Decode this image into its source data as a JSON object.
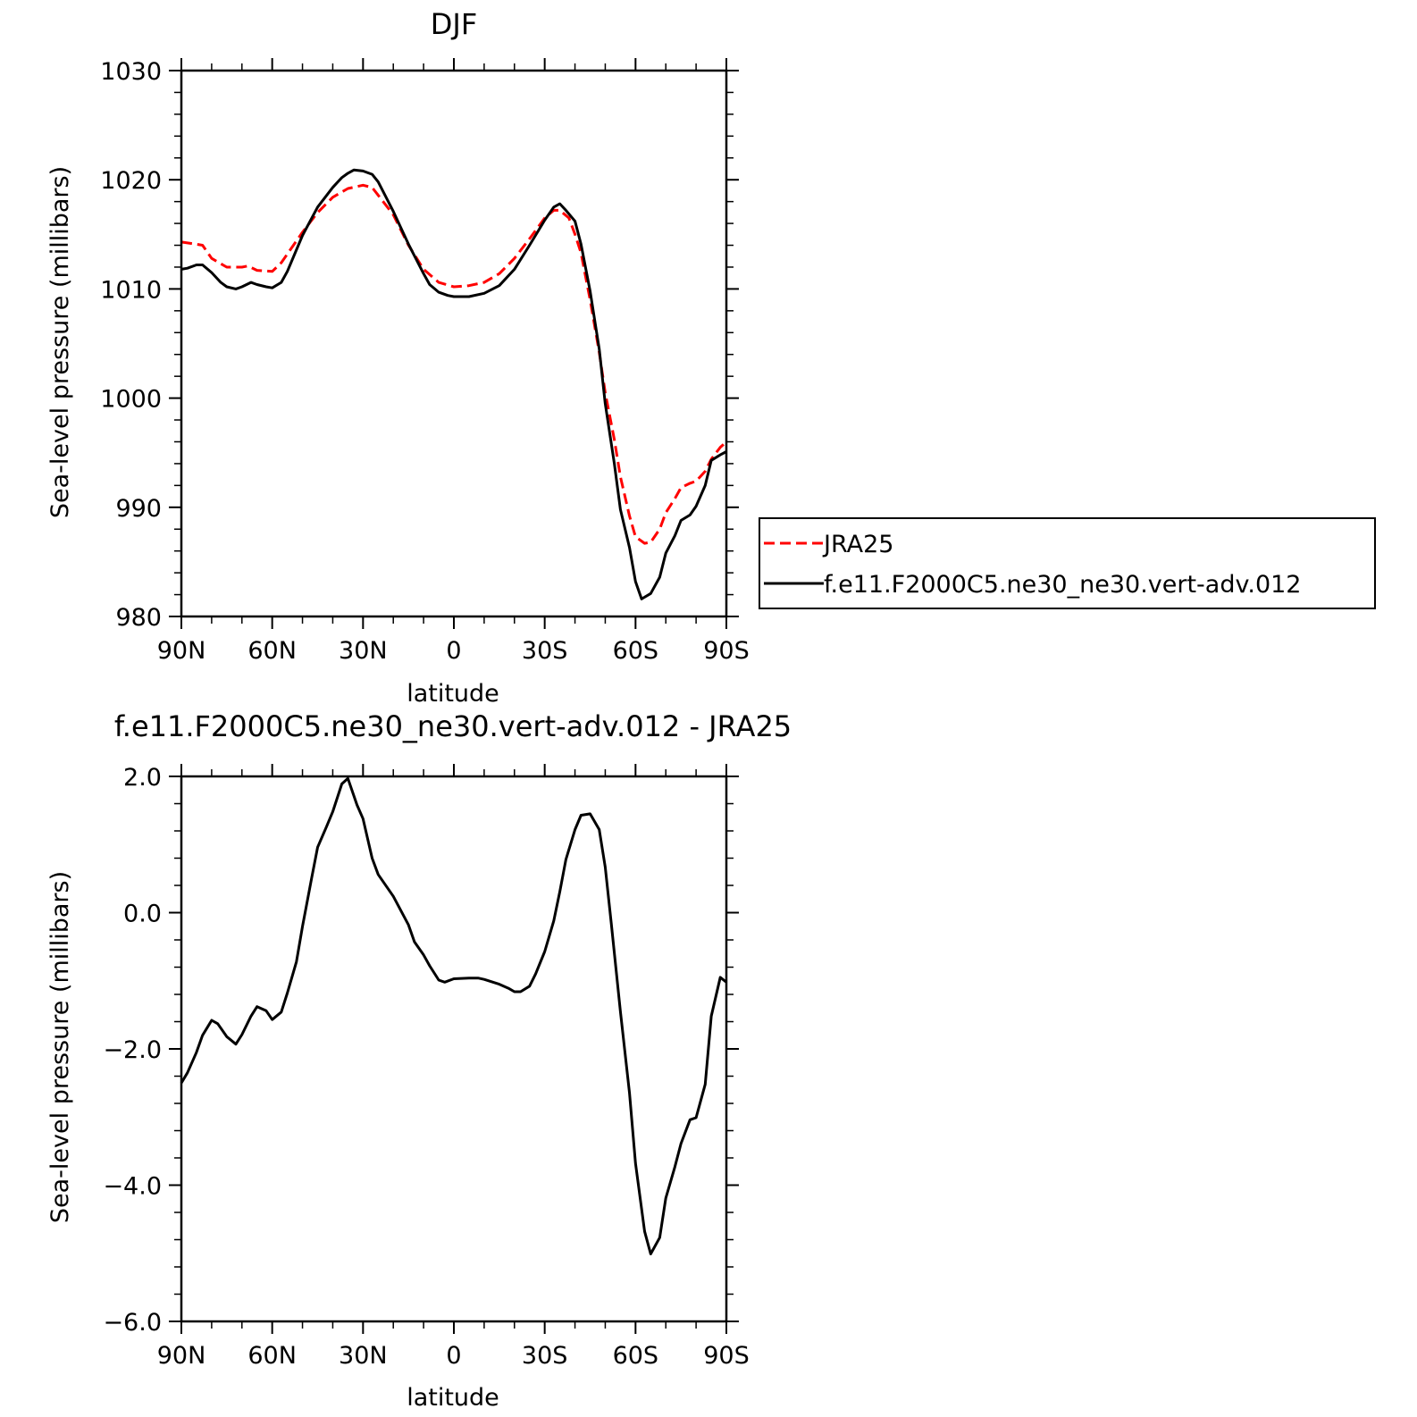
{
  "chart_data": [
    {
      "type": "line",
      "title": "DJF",
      "xlabel": "latitude",
      "ylabel": "Sea-level pressure (millibars)",
      "xlim": [
        90,
        -90
      ],
      "ylim": [
        980,
        1030
      ],
      "x_ticks": [
        {
          "value": 90,
          "label": "90N"
        },
        {
          "value": 60,
          "label": "60N"
        },
        {
          "value": 30,
          "label": "30N"
        },
        {
          "value": 0,
          "label": "0"
        },
        {
          "value": -30,
          "label": "30S"
        },
        {
          "value": -60,
          "label": "60S"
        },
        {
          "value": -90,
          "label": "90S"
        }
      ],
      "y_ticks": [
        {
          "value": 980,
          "label": "980"
        },
        {
          "value": 990,
          "label": "990"
        },
        {
          "value": 1000,
          "label": "1000"
        },
        {
          "value": 1010,
          "label": "1010"
        },
        {
          "value": 1020,
          "label": "1020"
        },
        {
          "value": 1030,
          "label": "1030"
        }
      ],
      "legend": {
        "position": "right"
      },
      "series": [
        {
          "name": "JRA25",
          "color": "#ff0000",
          "dash": "dashed",
          "x": [
            90,
            85,
            83,
            80,
            75,
            70,
            68,
            65,
            60,
            57,
            50,
            45,
            40,
            35,
            30,
            27,
            20,
            15,
            10,
            5,
            0,
            -5,
            -10,
            -15,
            -20,
            -25,
            -30,
            -33,
            -35,
            -38,
            -40,
            -42,
            -45,
            -48,
            -50,
            -53,
            -55,
            -58,
            -60,
            -63,
            -65,
            -68,
            -70,
            -73,
            -75,
            -78,
            -80,
            -83,
            -85,
            -88,
            -90
          ],
          "y": [
            1014.3,
            1014.1,
            1014.0,
            1012.8,
            1012.0,
            1012.0,
            1012.1,
            1011.7,
            1011.6,
            1012.4,
            1015.2,
            1017.0,
            1018.4,
            1019.2,
            1019.5,
            1019.3,
            1016.8,
            1014.0,
            1011.8,
            1010.6,
            1010.2,
            1010.3,
            1010.6,
            1011.4,
            1012.8,
            1014.6,
            1016.5,
            1017.2,
            1017.2,
            1016.5,
            1015.0,
            1013.3,
            1009.0,
            1004.2,
            1000.5,
            996.2,
            992.8,
            989.2,
            987.3,
            986.7,
            986.8,
            988.0,
            989.5,
            990.8,
            991.8,
            992.2,
            992.4,
            993.3,
            994.4,
            995.5,
            996.0
          ]
        },
        {
          "name": "f.e11.F2000C5.ne30_ne30.vert-adv.012",
          "color": "#000000",
          "dash": "solid",
          "x": [
            90,
            88,
            85,
            83,
            80,
            77,
            75,
            72,
            70,
            67,
            65,
            62,
            60,
            57,
            55,
            50,
            45,
            40,
            37,
            35,
            33,
            30,
            27,
            25,
            20,
            15,
            10,
            8,
            5,
            2,
            0,
            -5,
            -10,
            -15,
            -20,
            -25,
            -30,
            -33,
            -35,
            -37,
            -40,
            -42,
            -45,
            -48,
            -50,
            -53,
            -55,
            -58,
            -60,
            -62,
            -65,
            -68,
            -70,
            -73,
            -75,
            -78,
            -80,
            -83,
            -85,
            -88,
            -90
          ],
          "y": [
            1011.8,
            1011.9,
            1012.2,
            1012.2,
            1011.5,
            1010.6,
            1010.2,
            1010.0,
            1010.2,
            1010.6,
            1010.4,
            1010.2,
            1010.1,
            1010.6,
            1011.6,
            1014.9,
            1017.5,
            1019.3,
            1020.2,
            1020.6,
            1020.9,
            1020.8,
            1020.5,
            1019.8,
            1017.1,
            1014.1,
            1011.4,
            1010.4,
            1009.7,
            1009.4,
            1009.3,
            1009.3,
            1009.6,
            1010.3,
            1011.8,
            1014.0,
            1016.3,
            1017.5,
            1017.8,
            1017.2,
            1016.2,
            1014.1,
            1009.8,
            1004.5,
            999.5,
            994.0,
            989.8,
            986.3,
            983.2,
            981.6,
            982.1,
            983.6,
            985.8,
            987.4,
            988.8,
            989.3,
            990.1,
            992.0,
            994.3,
            994.8,
            995.1
          ]
        }
      ]
    },
    {
      "type": "line",
      "title": "f.e11.F2000C5.ne30_ne30.vert-adv.012 - JRA25",
      "xlabel": "latitude",
      "ylabel": "Sea-level pressure (millibars)",
      "xlim": [
        90,
        -90
      ],
      "ylim": [
        -6.0,
        2.0
      ],
      "x_ticks": [
        {
          "value": 90,
          "label": "90N"
        },
        {
          "value": 60,
          "label": "60N"
        },
        {
          "value": 30,
          "label": "30N"
        },
        {
          "value": 0,
          "label": "0"
        },
        {
          "value": -30,
          "label": "30S"
        },
        {
          "value": -60,
          "label": "60S"
        },
        {
          "value": -90,
          "label": "90S"
        }
      ],
      "y_ticks": [
        {
          "value": -6.0,
          "label": "−6.0"
        },
        {
          "value": -4.0,
          "label": "−4.0"
        },
        {
          "value": -2.0,
          "label": "−2.0"
        },
        {
          "value": 0.0,
          "label": "0.0"
        },
        {
          "value": 2.0,
          "label": "2.0"
        }
      ],
      "series": [
        {
          "color": "#000000",
          "dash": "solid",
          "x": [
            90,
            88,
            85,
            83,
            80,
            78,
            75,
            72,
            70,
            67,
            65,
            62,
            60,
            57,
            55,
            52,
            50,
            47,
            45,
            42,
            40,
            37,
            35,
            32,
            30,
            27,
            25,
            20,
            15,
            13,
            10,
            8,
            5,
            3,
            0,
            -5,
            -8,
            -10,
            -15,
            -18,
            -20,
            -22,
            -25,
            -27,
            -30,
            -33,
            -35,
            -37,
            -40,
            -42,
            -45,
            -48,
            -50,
            -52,
            -55,
            -58,
            -60,
            -63,
            -65,
            -68,
            -70,
            -73,
            -75,
            -78,
            -80,
            -83,
            -85,
            -88,
            -90
          ],
          "y": [
            -2.5,
            -2.35,
            -2.05,
            -1.8,
            -1.58,
            -1.63,
            -1.82,
            -1.93,
            -1.79,
            -1.52,
            -1.38,
            -1.44,
            -1.57,
            -1.46,
            -1.18,
            -0.72,
            -0.2,
            0.5,
            0.96,
            1.27,
            1.48,
            1.89,
            1.97,
            1.58,
            1.38,
            0.8,
            0.56,
            0.24,
            -0.18,
            -0.43,
            -0.62,
            -0.78,
            -0.99,
            -1.02,
            -0.97,
            -0.96,
            -0.96,
            -0.98,
            -1.05,
            -1.11,
            -1.16,
            -1.16,
            -1.08,
            -0.9,
            -0.57,
            -0.12,
            0.31,
            0.78,
            1.22,
            1.43,
            1.45,
            1.22,
            0.67,
            -0.16,
            -1.45,
            -2.65,
            -3.68,
            -4.68,
            -5.01,
            -4.77,
            -4.19,
            -3.73,
            -3.39,
            -3.04,
            -3.01,
            -2.52,
            -1.52,
            -0.95,
            -1.02
          ]
        }
      ]
    }
  ]
}
